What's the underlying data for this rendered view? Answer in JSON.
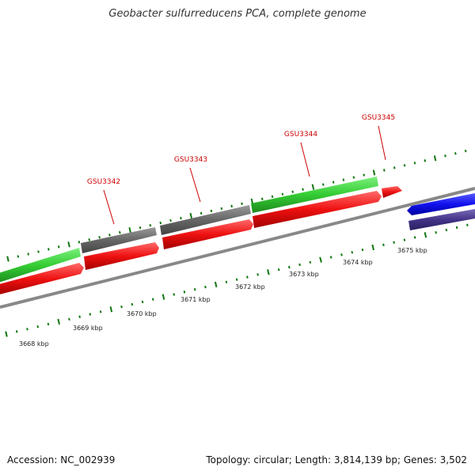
{
  "title": "Geobacter sulfurreducens PCA, complete genome",
  "footer": {
    "accession": "Accession: NC_002939",
    "summary": "Topology: circular; Length: 3,814,139 bp; Genes: 3,502"
  },
  "colors": {
    "cds_forward": "#33cc33",
    "cds_reverse": "#ee1111",
    "gene_gray": "#666666",
    "gene_blue": "#1111ee",
    "gene_purple": "#443388",
    "backbone": "#888888",
    "ticks": "#117711",
    "label_red": "#cc0000"
  },
  "gene_labels": [
    {
      "id": "GSU3342",
      "icon": "gene-pointer"
    },
    {
      "id": "GSU3343",
      "icon": "gene-pointer"
    },
    {
      "id": "GSU3344",
      "icon": "gene-pointer"
    },
    {
      "id": "GSU3345",
      "icon": "gene-pointer"
    }
  ],
  "kbp_labels": [
    "3668 kbp",
    "3669 kbp",
    "3670 kbp",
    "3671 kbp",
    "3672 kbp",
    "3673 kbp",
    "3674 kbp",
    "3675 kbp"
  ]
}
